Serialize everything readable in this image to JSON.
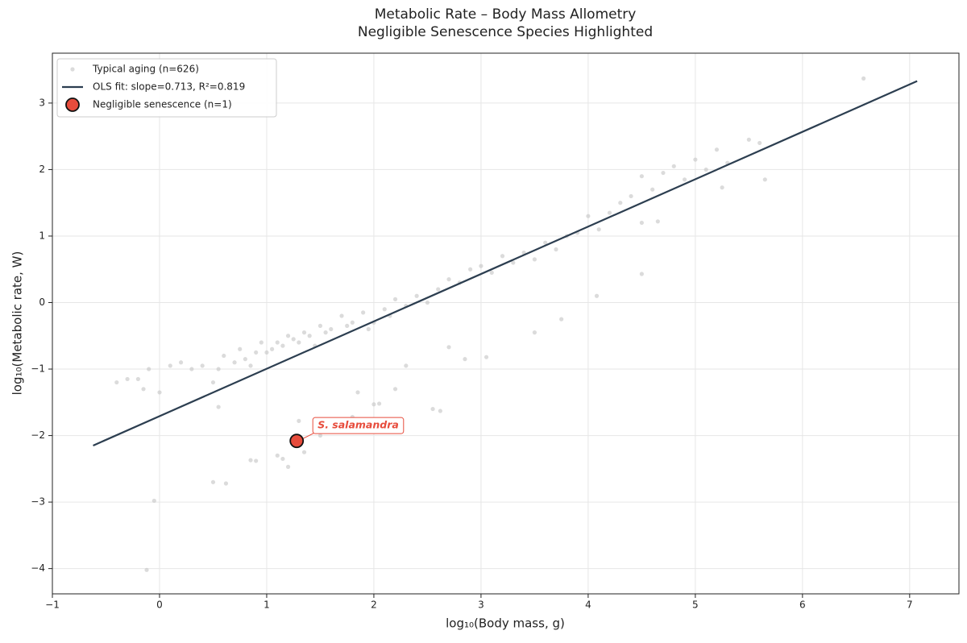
{
  "chart_data": {
    "type": "scatter",
    "title": "Metabolic Rate – Body Mass Allometry",
    "subtitle": "Negligible Senescence Species Highlighted",
    "x_label": "log₁₀(Body mass, g)",
    "y_label": "log₁₀(Metabolic rate, W)",
    "xlim": [
      -1,
      7.46
    ],
    "ylim": [
      -4.38,
      3.75
    ],
    "xticks": [
      {
        "value": -1,
        "label": "−1"
      },
      0,
      1,
      2,
      3,
      4,
      5,
      6,
      7
    ],
    "yticks": [
      {
        "value": -4,
        "label": "−4"
      },
      {
        "value": -3,
        "label": "−3"
      },
      {
        "value": -2,
        "label": "−2"
      },
      {
        "value": -1,
        "label": "−1"
      },
      0,
      1,
      2,
      3
    ],
    "grid": true,
    "legend": "upper left",
    "series": [
      {
        "name": "Typical aging (n=626)",
        "type": "scatter",
        "color": "#c8c8c8",
        "x": [
          -0.4,
          -0.3,
          -0.2,
          -0.15,
          -0.1,
          0.0,
          0.1,
          0.2,
          0.3,
          0.4,
          0.5,
          0.55,
          0.6,
          0.7,
          0.75,
          0.8,
          0.85,
          0.9,
          0.95,
          1.0,
          1.05,
          1.1,
          1.15,
          1.2,
          1.25,
          1.3,
          1.35,
          1.4,
          1.45,
          1.5,
          1.55,
          1.6,
          1.7,
          1.75,
          1.8,
          1.9,
          1.95,
          2.0,
          2.1,
          2.15,
          2.2,
          2.3,
          2.4,
          2.5,
          2.6,
          2.7,
          2.8,
          2.9,
          3.0,
          3.1,
          3.2,
          3.3,
          3.4,
          3.5,
          3.6,
          3.7,
          3.8,
          3.9,
          4.0,
          4.1,
          4.2,
          4.3,
          4.4,
          4.5,
          4.6,
          4.7,
          4.8,
          4.9,
          5.0,
          5.1,
          5.2,
          5.3,
          5.5,
          5.6,
          5.65,
          6.57,
          -0.12,
          -0.05,
          0.5,
          0.62,
          0.55,
          0.85,
          0.9,
          1.1,
          1.15,
          1.2,
          1.3,
          1.35,
          1.5,
          1.85,
          1.8,
          2.0,
          2.05,
          2.2,
          2.3,
          2.55,
          2.62,
          2.7,
          2.85,
          3.05,
          3.5,
          3.75,
          4.08,
          4.5,
          4.65,
          4.5,
          5.25
        ],
        "values": [
          -1.2,
          -1.15,
          -1.15,
          -1.3,
          -1.0,
          -1.35,
          -0.95,
          -0.9,
          -1.0,
          -0.95,
          -1.2,
          -1.0,
          -0.8,
          -0.9,
          -0.7,
          -0.85,
          -0.95,
          -0.75,
          -0.6,
          -0.75,
          -0.7,
          -0.6,
          -0.65,
          -0.5,
          -0.55,
          -0.6,
          -0.45,
          -0.5,
          -0.65,
          -0.35,
          -0.45,
          -0.4,
          -0.2,
          -0.35,
          -0.3,
          -0.15,
          -0.4,
          -0.3,
          -0.1,
          -0.2,
          0.05,
          -0.05,
          0.1,
          0.0,
          0.2,
          0.35,
          0.3,
          0.5,
          0.55,
          0.45,
          0.7,
          0.6,
          0.75,
          0.65,
          0.9,
          0.8,
          1.0,
          1.05,
          1.3,
          1.1,
          1.35,
          1.5,
          1.6,
          1.9,
          1.7,
          1.95,
          2.05,
          1.85,
          2.15,
          2.0,
          2.3,
          2.1,
          2.45,
          2.4,
          1.85,
          3.37,
          -4.02,
          -2.98,
          -2.7,
          -2.72,
          -1.57,
          -2.37,
          -2.38,
          -2.3,
          -2.35,
          -2.47,
          -1.78,
          -2.25,
          -2.0,
          -1.35,
          -1.72,
          -1.53,
          -1.52,
          -1.3,
          -0.95,
          -1.6,
          -1.63,
          -0.67,
          -0.85,
          -0.82,
          -0.45,
          -0.25,
          0.1,
          0.43,
          1.22,
          1.2,
          1.73
        ]
      },
      {
        "name": "OLS fit: slope=0.713, R²=0.819",
        "type": "line",
        "color": "#2c3e50",
        "x": [
          -0.62,
          7.07
        ],
        "values": [
          -2.15,
          3.33
        ]
      },
      {
        "name": "Negligible senescence (n=1)",
        "type": "highlight",
        "color": "#e74c3c",
        "x": [
          1.28
        ],
        "values": [
          -2.08
        ]
      }
    ],
    "annotations": [
      {
        "text": "S. salamandra"
      }
    ]
  }
}
